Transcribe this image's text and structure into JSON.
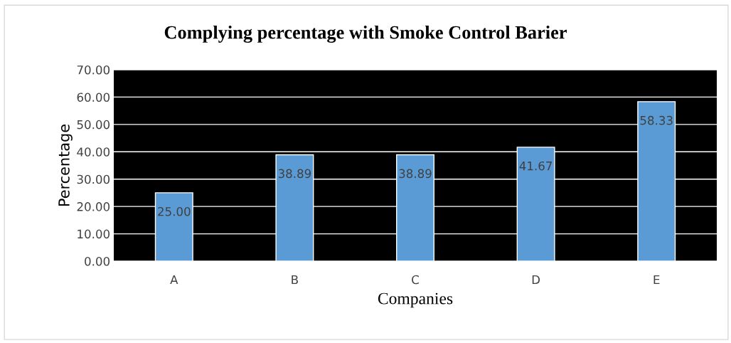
{
  "chart_data": {
    "type": "bar",
    "title": "Complying percentage with Smoke Control Barier",
    "xlabel": "Companies",
    "ylabel": "Percentage",
    "categories": [
      "A",
      "B",
      "C",
      "D",
      "E"
    ],
    "values": [
      25.0,
      38.89,
      38.89,
      41.67,
      58.33
    ],
    "value_labels": [
      "25.00",
      "38.89",
      "38.89",
      "41.67",
      "58.33"
    ],
    "color": "#5b9bd5",
    "ylim": [
      0,
      70
    ],
    "yticks": [
      {
        "value": 0,
        "label": "0.00"
      },
      {
        "value": 10,
        "label": "10.00"
      },
      {
        "value": 20,
        "label": "20.00"
      },
      {
        "value": 30,
        "label": "30.00"
      },
      {
        "value": 40,
        "label": "40.00"
      },
      {
        "value": 50,
        "label": "50.00"
      },
      {
        "value": 60,
        "label": "60.00"
      },
      {
        "value": 70,
        "label": "70.00"
      }
    ],
    "grid": "y"
  }
}
